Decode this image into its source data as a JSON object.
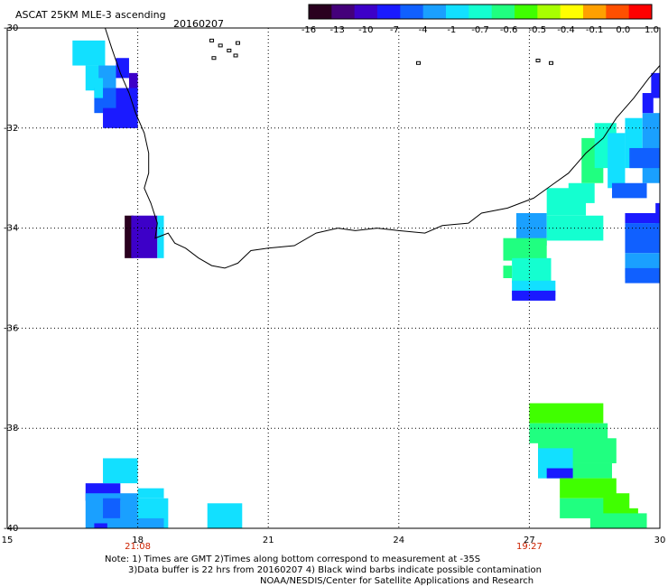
{
  "header": {
    "title": "ASCAT 25KM MLE-3 ascending",
    "date": "20160207"
  },
  "colorbar": {
    "ticks": [
      "-16",
      "-13",
      "-10",
      "-7",
      "-4",
      "-1",
      "-0.7",
      "-0.6",
      "-0.5",
      "-0.4",
      "-0.1",
      "0.0",
      "1.0"
    ],
    "colors": [
      "#2a001f",
      "#44007a",
      "#3d00c8",
      "#1a1aff",
      "#1060ff",
      "#1aa0ff",
      "#12e0ff",
      "#14ffd0",
      "#20ff80",
      "#40ff00",
      "#a8ff00",
      "#ffff00",
      "#ffa000",
      "#ff5000",
      "#ff0000"
    ]
  },
  "map": {
    "lon_range": [
      15,
      30
    ],
    "lat_range": [
      -40,
      -30
    ],
    "lon_ticks": [
      "15",
      "18",
      "21",
      "24",
      "27",
      "30"
    ],
    "lat_ticks": [
      "-30",
      "-32",
      "-34",
      "-36",
      "-38",
      "-40"
    ],
    "time_labels": [
      {
        "lon": 18,
        "text": "21:08"
      },
      {
        "lon": 27,
        "text": "19:27"
      }
    ],
    "cells": [
      {
        "lon": 16.5,
        "lat": -30.25,
        "w": 0.75,
        "h": 0.5,
        "color": "#12e0ff"
      },
      {
        "lon": 16.8,
        "lat": -30.75,
        "w": 0.5,
        "h": 0.5,
        "color": "#12e0ff"
      },
      {
        "lon": 17.1,
        "lat": -30.75,
        "w": 0.4,
        "h": 0.5,
        "color": "#1aa0ff"
      },
      {
        "lon": 17.5,
        "lat": -30.6,
        "w": 0.3,
        "h": 0.4,
        "color": "#1a1aff"
      },
      {
        "lon": 17.8,
        "lat": -30.9,
        "w": 0.2,
        "h": 0.7,
        "color": "#3d00c8"
      },
      {
        "lon": 17.0,
        "lat": -31.2,
        "w": 0.5,
        "h": 0.5,
        "color": "#1060ff"
      },
      {
        "lon": 17.5,
        "lat": -31.2,
        "w": 0.5,
        "h": 0.5,
        "color": "#1a1aff"
      },
      {
        "lon": 17.2,
        "lat": -31.6,
        "w": 0.8,
        "h": 0.4,
        "color": "#1a1aff"
      },
      {
        "lon": 17.0,
        "lat": -31.0,
        "w": 0.2,
        "h": 0.4,
        "color": "#12e0ff"
      },
      {
        "lon": 17.4,
        "lat": -31.8,
        "w": 0.6,
        "h": 0.2,
        "color": "#1a1aff"
      },
      {
        "lon": 17.7,
        "lat": -33.75,
        "w": 0.2,
        "h": 0.85,
        "color": "#2a001f"
      },
      {
        "lon": 17.85,
        "lat": -33.75,
        "w": 0.6,
        "h": 0.85,
        "color": "#3d00c8"
      },
      {
        "lon": 18.45,
        "lat": -33.75,
        "w": 0.15,
        "h": 0.85,
        "color": "#12e0ff"
      },
      {
        "lon": 16.8,
        "lat": -39.1,
        "w": 0.8,
        "h": 0.35,
        "color": "#1a1aff"
      },
      {
        "lon": 17.2,
        "lat": -38.6,
        "w": 0.8,
        "h": 0.5,
        "color": "#12e0ff"
      },
      {
        "lon": 16.8,
        "lat": -39.3,
        "w": 0.8,
        "h": 0.7,
        "color": "#1aa0ff"
      },
      {
        "lon": 17.2,
        "lat": -39.4,
        "w": 0.4,
        "h": 0.4,
        "color": "#1060ff"
      },
      {
        "lon": 17.6,
        "lat": -39.3,
        "w": 0.4,
        "h": 0.7,
        "color": "#1aa0ff"
      },
      {
        "lon": 18.0,
        "lat": -39.4,
        "w": 0.7,
        "h": 0.6,
        "color": "#12e0ff"
      },
      {
        "lon": 18.0,
        "lat": -39.2,
        "w": 0.6,
        "h": 0.2,
        "color": "#12e0ff"
      },
      {
        "lon": 17.0,
        "lat": -39.8,
        "w": 1.6,
        "h": 0.2,
        "color": "#1aa0ff"
      },
      {
        "lon": 17.0,
        "lat": -39.9,
        "w": 0.3,
        "h": 0.1,
        "color": "#1a1aff"
      },
      {
        "lon": 19.6,
        "lat": -39.5,
        "w": 0.8,
        "h": 0.5,
        "color": "#12e0ff"
      },
      {
        "lon": 26.7,
        "lat": -33.7,
        "w": 0.7,
        "h": 0.65,
        "color": "#1aa0ff"
      },
      {
        "lon": 27.4,
        "lat": -33.2,
        "w": 0.9,
        "h": 0.55,
        "color": "#14ffd0"
      },
      {
        "lon": 27.4,
        "lat": -33.75,
        "w": 1.3,
        "h": 0.5,
        "color": "#14ffd0"
      },
      {
        "lon": 27.9,
        "lat": -33.1,
        "w": 0.6,
        "h": 0.4,
        "color": "#14ffd0"
      },
      {
        "lon": 28.2,
        "lat": -32.2,
        "w": 0.5,
        "h": 0.9,
        "color": "#20ff80"
      },
      {
        "lon": 28.5,
        "lat": -31.9,
        "w": 0.5,
        "h": 0.9,
        "color": "#14ffd0"
      },
      {
        "lon": 28.8,
        "lat": -32.1,
        "w": 0.4,
        "h": 1.1,
        "color": "#12e0ff"
      },
      {
        "lon": 29.2,
        "lat": -31.8,
        "w": 0.4,
        "h": 1.0,
        "color": "#12e0ff"
      },
      {
        "lon": 29.6,
        "lat": -31.7,
        "w": 0.4,
        "h": 1.4,
        "color": "#1aa0ff"
      },
      {
        "lon": 29.6,
        "lat": -31.3,
        "w": 0.25,
        "h": 0.4,
        "color": "#1a1aff"
      },
      {
        "lon": 29.8,
        "lat": -30.9,
        "w": 0.2,
        "h": 0.5,
        "color": "#1a1aff"
      },
      {
        "lon": 29.3,
        "lat": -32.4,
        "w": 0.7,
        "h": 0.4,
        "color": "#1060ff"
      },
      {
        "lon": 28.9,
        "lat": -33.1,
        "w": 0.8,
        "h": 0.3,
        "color": "#1060ff"
      },
      {
        "lon": 29.9,
        "lat": -33.5,
        "w": 0.1,
        "h": 0.5,
        "color": "#1a1aff"
      },
      {
        "lon": 29.2,
        "lat": -33.7,
        "w": 0.8,
        "h": 0.2,
        "color": "#1a1aff"
      },
      {
        "lon": 29.2,
        "lat": -33.9,
        "w": 0.8,
        "h": 0.6,
        "color": "#1060ff"
      },
      {
        "lon": 29.2,
        "lat": -34.5,
        "w": 0.8,
        "h": 0.5,
        "color": "#1aa0ff"
      },
      {
        "lon": 29.2,
        "lat": -34.8,
        "w": 0.8,
        "h": 0.3,
        "color": "#1060ff"
      },
      {
        "lon": 26.4,
        "lat": -34.2,
        "w": 1.0,
        "h": 0.45,
        "color": "#20ff80"
      },
      {
        "lon": 26.6,
        "lat": -34.6,
        "w": 0.9,
        "h": 0.5,
        "color": "#14ffd0"
      },
      {
        "lon": 26.4,
        "lat": -34.75,
        "w": 0.2,
        "h": 0.25,
        "color": "#20ff80"
      },
      {
        "lon": 26.6,
        "lat": -35.05,
        "w": 1.0,
        "h": 0.3,
        "color": "#12e0ff"
      },
      {
        "lon": 26.6,
        "lat": -35.25,
        "w": 1.0,
        "h": 0.2,
        "color": "#1a1aff"
      },
      {
        "lon": 27.0,
        "lat": -37.5,
        "w": 1.7,
        "h": 0.4,
        "color": "#40ff00"
      },
      {
        "lon": 27.0,
        "lat": -37.9,
        "w": 1.8,
        "h": 0.4,
        "color": "#20ff80"
      },
      {
        "lon": 27.2,
        "lat": -38.2,
        "w": 1.8,
        "h": 0.5,
        "color": "#20ff80"
      },
      {
        "lon": 27.2,
        "lat": -38.7,
        "w": 1.7,
        "h": 0.3,
        "color": "#20ff80"
      },
      {
        "lon": 27.2,
        "lat": -38.4,
        "w": 0.8,
        "h": 0.6,
        "color": "#12e0ff"
      },
      {
        "lon": 27.4,
        "lat": -38.8,
        "w": 0.6,
        "h": 0.2,
        "color": "#1a1aff"
      },
      {
        "lon": 27.7,
        "lat": -39.0,
        "w": 1.3,
        "h": 0.4,
        "color": "#40ff00"
      },
      {
        "lon": 27.7,
        "lat": -39.4,
        "w": 1.3,
        "h": 0.4,
        "color": "#20ff80"
      },
      {
        "lon": 28.7,
        "lat": -39.3,
        "w": 0.6,
        "h": 0.5,
        "color": "#40ff00"
      },
      {
        "lon": 28.8,
        "lat": -39.6,
        "w": 0.7,
        "h": 0.35,
        "color": "#40ff00"
      },
      {
        "lon": 28.4,
        "lat": -39.7,
        "w": 1.3,
        "h": 0.3,
        "color": "#20ff80"
      }
    ],
    "coastline": [
      [
        17.25,
        -30.0
      ],
      [
        17.4,
        -30.4
      ],
      [
        17.6,
        -30.9
      ],
      [
        17.8,
        -31.3
      ],
      [
        17.95,
        -31.7
      ],
      [
        18.15,
        -32.1
      ],
      [
        18.25,
        -32.5
      ],
      [
        18.25,
        -32.9
      ],
      [
        18.15,
        -33.2
      ],
      [
        18.3,
        -33.5
      ],
      [
        18.45,
        -33.9
      ],
      [
        18.4,
        -34.2
      ],
      [
        18.7,
        -34.1
      ],
      [
        18.85,
        -34.3
      ],
      [
        19.1,
        -34.4
      ],
      [
        19.4,
        -34.6
      ],
      [
        19.7,
        -34.75
      ],
      [
        20.0,
        -34.8
      ],
      [
        20.3,
        -34.7
      ],
      [
        20.6,
        -34.45
      ],
      [
        21.0,
        -34.4
      ],
      [
        21.6,
        -34.35
      ],
      [
        22.1,
        -34.1
      ],
      [
        22.6,
        -34.0
      ],
      [
        23.0,
        -34.05
      ],
      [
        23.5,
        -34.0
      ],
      [
        24.0,
        -34.05
      ],
      [
        24.6,
        -34.1
      ],
      [
        25.0,
        -33.95
      ],
      [
        25.6,
        -33.9
      ],
      [
        25.9,
        -33.7
      ],
      [
        26.5,
        -33.6
      ],
      [
        27.1,
        -33.4
      ],
      [
        27.5,
        -33.15
      ],
      [
        27.9,
        -32.9
      ],
      [
        28.3,
        -32.5
      ],
      [
        28.7,
        -32.2
      ],
      [
        29.0,
        -31.8
      ],
      [
        29.4,
        -31.4
      ],
      [
        29.75,
        -31.0
      ],
      [
        30.0,
        -30.75
      ]
    ],
    "islands": [
      [
        19.7,
        -30.25
      ],
      [
        19.9,
        -30.35
      ],
      [
        20.1,
        -30.45
      ],
      [
        19.75,
        -30.6
      ],
      [
        20.3,
        -30.3
      ],
      [
        20.25,
        -30.55
      ],
      [
        24.45,
        -30.7
      ],
      [
        27.2,
        -30.65
      ],
      [
        27.5,
        -30.7
      ]
    ]
  },
  "notes": {
    "line1": "Note: 1) Times are GMT 2)Times along bottom correspond to measurement at -35S",
    "line2": "3)Data buffer is 22 hrs from 20160207 4) Black wind barbs indicate possible contamination",
    "line3": "NOAA/NESDIS/Center for Satellite Applications and Research"
  }
}
